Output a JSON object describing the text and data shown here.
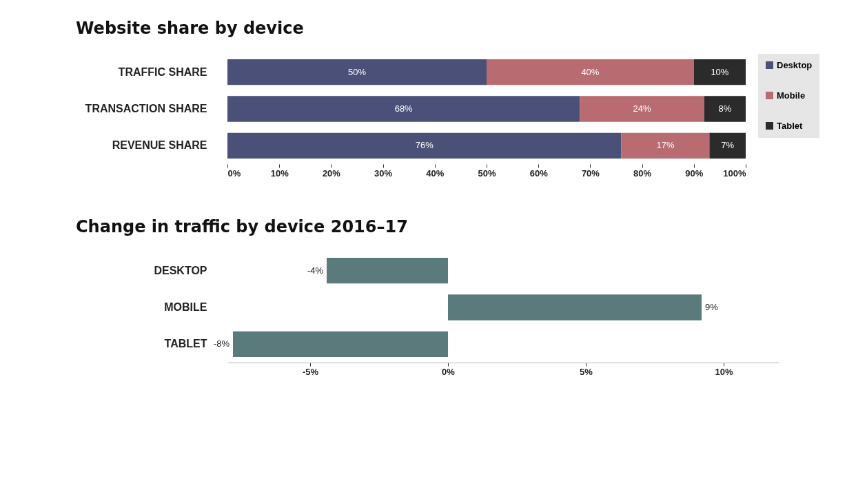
{
  "chart_data": [
    {
      "type": "bar",
      "title": "Website share by device",
      "orientation": "horizontal",
      "stacked": true,
      "legend": "right",
      "categories": [
        "TRAFFIC SHARE",
        "TRANSACTION SHARE",
        "REVENUE SHARE"
      ],
      "series": [
        {
          "name": "Desktop",
          "color": "#4a5078",
          "values": [
            50,
            68,
            76
          ],
          "value_labels": [
            "50%",
            "68%",
            "76%"
          ]
        },
        {
          "name": "Mobile",
          "color": "#b86b70",
          "values": [
            40,
            24,
            17
          ],
          "value_labels": [
            "40%",
            "24%",
            "17%"
          ]
        },
        {
          "name": "Tablet",
          "color": "#2b2b2b",
          "values": [
            10,
            8,
            7
          ],
          "value_labels": [
            "10%",
            "8%",
            "7%"
          ]
        }
      ],
      "xlim": [
        0,
        100
      ],
      "xticks": [
        {
          "value": 0,
          "label": "0%"
        },
        {
          "value": 10,
          "label": "10%"
        },
        {
          "value": 20,
          "label": "20%"
        },
        {
          "value": 30,
          "label": "30%"
        },
        {
          "value": 40,
          "label": "40%"
        },
        {
          "value": 50,
          "label": "50%"
        },
        {
          "value": 60,
          "label": "60%"
        },
        {
          "value": 70,
          "label": "70%"
        },
        {
          "value": 80,
          "label": "80%"
        },
        {
          "value": 90,
          "label": "90%"
        },
        {
          "value": 100,
          "label": "100%"
        }
      ]
    },
    {
      "type": "bar",
      "title": "Change in traffic by device 2016–17",
      "orientation": "horizontal",
      "categories": [
        "DESKTOP",
        "MOBILE",
        "TABLET"
      ],
      "values": [
        -4.4,
        9.2,
        -7.8
      ],
      "value_labels": [
        "-4%",
        "9%",
        "-8%"
      ],
      "color": "#5a7a7c",
      "xlim": [
        -8,
        12
      ],
      "xticks": [
        {
          "value": -5,
          "label": "-5%"
        },
        {
          "value": 0,
          "label": "0%"
        },
        {
          "value": 5,
          "label": "5%"
        },
        {
          "value": 10,
          "label": "10%"
        }
      ]
    }
  ]
}
